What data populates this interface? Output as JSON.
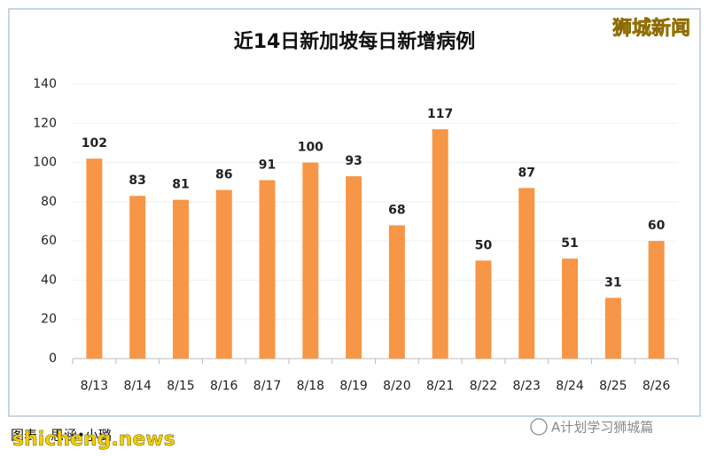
{
  "chart_data": {
    "type": "bar",
    "title": "近14日新加坡每日新增病例",
    "categories": [
      "8/13",
      "8/14",
      "8/15",
      "8/16",
      "8/17",
      "8/18",
      "8/19",
      "8/20",
      "8/21",
      "8/22",
      "8/23",
      "8/24",
      "8/25",
      "8/26"
    ],
    "values": [
      102,
      83,
      81,
      86,
      91,
      100,
      93,
      68,
      117,
      50,
      87,
      51,
      31,
      60
    ],
    "color": "#f79646",
    "ylim": [
      0,
      140
    ],
    "yticks": [
      0,
      20,
      40,
      60,
      80,
      100,
      120,
      140
    ],
    "grid": true
  },
  "watermarks": {
    "top_right": "狮城新闻",
    "credit": "图表：思涵•小璐",
    "site": "shicheng.news",
    "account": "A计划学习狮城篇"
  }
}
